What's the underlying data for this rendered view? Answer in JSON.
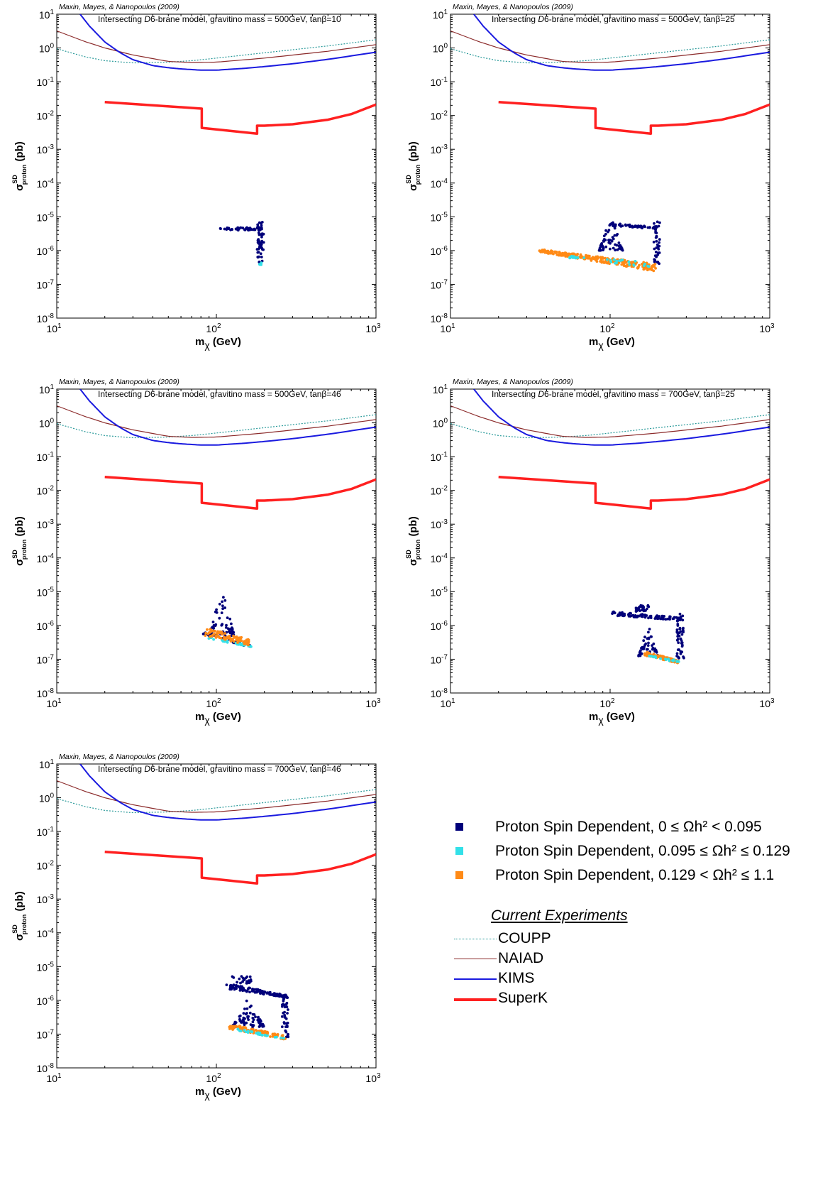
{
  "chart_data": [
    {
      "type": "scatter",
      "credit": "Maxin, Mayes, & Nanopoulos (2009)",
      "title_pre": "Intersecting ",
      "title_d": "D",
      "title_post": "6-brane model, gravitino mass = 500GeV, tanβ=10",
      "xlabel_main": "m",
      "xlabel_sub": "χ",
      "xlabel_unit": " (GeV)",
      "ylabel_main": "σ",
      "ylabel_sup": "SD",
      "ylabel_sub": "proton",
      "ylabel_unit": " (pb)",
      "xscale": "log",
      "yscale": "log",
      "xlim": [
        10,
        1000
      ],
      "ylim": [
        1e-08,
        10
      ],
      "clusters": [
        {
          "group": 0,
          "n": 45,
          "x": [
            105,
            195
          ],
          "y": [
            4e-06,
            4.8e-06
          ],
          "trend": "flat"
        },
        {
          "group": 0,
          "n": 55,
          "x": [
            180,
            198
          ],
          "y": [
            4.5e-07,
            7e-06
          ],
          "trend": "vertical"
        },
        {
          "group": 1,
          "n": 6,
          "x": [
            182,
            192
          ],
          "y": [
            3.6e-07,
            4.4e-07
          ],
          "trend": "flat"
        }
      ]
    },
    {
      "type": "scatter",
      "credit": "Maxin, Mayes, & Nanopoulos (2009)",
      "title_pre": "Intersecting ",
      "title_d": "D",
      "title_post": "6-brane model, gravitino mass = 500GeV, tanβ=25",
      "xlabel_main": "m",
      "xlabel_sub": "χ",
      "xlabel_unit": " (GeV)",
      "ylabel_main": "σ",
      "ylabel_sup": "SD",
      "ylabel_sub": "proton",
      "ylabel_unit": " (pb)",
      "xscale": "log",
      "yscale": "log",
      "xlim": [
        10,
        1000
      ],
      "ylim": [
        1e-08,
        10
      ],
      "clusters": [
        {
          "group": 2,
          "n": 260,
          "x": [
            36,
            195
          ],
          "y": [
            [
              9e-07,
              2.4e-07
            ],
            [
              1.1e-06,
              4e-07
            ]
          ],
          "trend": "band"
        },
        {
          "group": 1,
          "n": 30,
          "x": [
            55,
            200
          ],
          "y": [
            [
              6e-07,
              3e-07
            ],
            [
              7e-07,
              4.5e-07
            ]
          ],
          "trend": "band"
        },
        {
          "group": 0,
          "n": 60,
          "x": [
            85,
            120
          ],
          "y": [
            1e-06,
            1.3e-05
          ],
          "trend": "spike"
        },
        {
          "group": 0,
          "n": 60,
          "x": [
            100,
            200
          ],
          "y": [
            [
              5.5e-06,
              4.2e-06
            ],
            [
              6.5e-06,
              5e-06
            ]
          ],
          "trend": "band"
        },
        {
          "group": 0,
          "n": 40,
          "x": [
            188,
            205
          ],
          "y": [
            3.5e-07,
            8e-06
          ],
          "trend": "vertical"
        }
      ]
    },
    {
      "type": "scatter",
      "credit": "Maxin, Mayes, & Nanopoulos (2009)",
      "title_pre": "Intersecting ",
      "title_d": "D",
      "title_post": "6-brane model, gravitino mass = 500GeV, tanβ=46",
      "xlabel_main": "m",
      "xlabel_sub": "χ",
      "xlabel_unit": " (GeV)",
      "ylabel_main": "σ",
      "ylabel_sup": "SD",
      "ylabel_sub": "proton",
      "ylabel_unit": " (pb)",
      "xscale": "log",
      "yscale": "log",
      "xlim": [
        10,
        1000
      ],
      "ylim": [
        1e-08,
        10
      ],
      "clusters": [
        {
          "group": 0,
          "n": 70,
          "x": [
            90,
            130
          ],
          "y": [
            5e-07,
            1.4e-05
          ],
          "trend": "spike"
        },
        {
          "group": 0,
          "n": 40,
          "x": [
            82,
            165
          ],
          "y": [
            [
              5.5e-07,
              2.2e-07
            ],
            [
              6.5e-07,
              2.6e-07
            ]
          ],
          "trend": "band"
        },
        {
          "group": 1,
          "n": 30,
          "x": [
            85,
            165
          ],
          "y": [
            [
              4.2e-07,
              2.3e-07
            ],
            [
              5e-07,
              2.6e-07
            ]
          ],
          "trend": "band"
        },
        {
          "group": 2,
          "n": 90,
          "x": [
            85,
            160
          ],
          "y": [
            [
              5e-07,
              2.6e-07
            ],
            [
              9e-07,
              4e-07
            ]
          ],
          "trend": "band"
        }
      ]
    },
    {
      "type": "scatter",
      "credit": "Maxin, Mayes, & Nanopoulos (2009)",
      "title_pre": "Intersecting ",
      "title_d": "D",
      "title_post": "6-brane model, gravitino mass = 700GeV, tanβ=25",
      "xlabel_main": "m",
      "xlabel_sub": "χ",
      "xlabel_unit": " (GeV)",
      "ylabel_main": "σ",
      "ylabel_sup": "SD",
      "ylabel_sub": "proton",
      "ylabel_unit": " (pb)",
      "xscale": "log",
      "yscale": "log",
      "xlim": [
        10,
        1000
      ],
      "ylim": [
        1e-08,
        10
      ],
      "clusters": [
        {
          "group": 0,
          "n": 90,
          "x": [
            100,
            285
          ],
          "y": [
            [
              2e-06,
              1.4e-06
            ],
            [
              2.6e-06,
              1.7e-06
            ]
          ],
          "trend": "band"
        },
        {
          "group": 0,
          "n": 30,
          "x": [
            145,
            175
          ],
          "y": [
            2.5e-06,
            4e-06
          ],
          "trend": "flat"
        },
        {
          "group": 0,
          "n": 50,
          "x": [
            150,
            200
          ],
          "y": [
            1.2e-07,
            1.2e-06
          ],
          "trend": "spike"
        },
        {
          "group": 0,
          "n": 50,
          "x": [
            262,
            290
          ],
          "y": [
            8e-08,
            2.2e-06
          ],
          "trend": "vertical"
        },
        {
          "group": 2,
          "n": 90,
          "x": [
            165,
            270
          ],
          "y": [
            [
              1.3e-07,
              7.5e-08
            ],
            [
              1.7e-07,
              9e-08
            ]
          ],
          "trend": "band"
        },
        {
          "group": 1,
          "n": 20,
          "x": [
            175,
            275
          ],
          "y": [
            [
              1.1e-07,
              8e-08
            ],
            [
              1.3e-07,
              9e-08
            ]
          ],
          "trend": "band"
        }
      ]
    },
    {
      "type": "scatter",
      "credit": "Maxin, Mayes, & Nanopoulos (2009)",
      "title_pre": "Intersecting ",
      "title_d": "D",
      "title_post": "6-brane model, gravitino mass = 700GeV, tanβ=46",
      "xlabel_main": "m",
      "xlabel_sub": "χ",
      "xlabel_unit": " (GeV)",
      "ylabel_main": "σ",
      "ylabel_sup": "SD",
      "ylabel_sub": "proton",
      "ylabel_unit": " (pb)",
      "xscale": "log",
      "yscale": "log",
      "xlim": [
        10,
        1000
      ],
      "ylim": [
        1e-08,
        10
      ],
      "clusters": [
        {
          "group": 0,
          "n": 100,
          "x": [
            115,
            280
          ],
          "y": [
            [
              2.2e-06,
              1.2e-06
            ],
            [
              3.2e-06,
              1.4e-06
            ]
          ],
          "trend": "band"
        },
        {
          "group": 0,
          "n": 25,
          "x": [
            125,
            165
          ],
          "y": [
            3e-06,
            5.5e-06
          ],
          "trend": "flat"
        },
        {
          "group": 0,
          "n": 70,
          "x": [
            125,
            200
          ],
          "y": [
            1.6e-07,
            1.2e-06
          ],
          "trend": "spike"
        },
        {
          "group": 0,
          "n": 40,
          "x": [
            258,
            282
          ],
          "y": [
            7e-08,
            1.6e-06
          ],
          "trend": "vertical"
        },
        {
          "group": 2,
          "n": 110,
          "x": [
            120,
            270
          ],
          "y": [
            [
              1.4e-07,
              7e-08
            ],
            [
              2e-07,
              9e-08
            ]
          ],
          "trend": "band"
        },
        {
          "group": 1,
          "n": 25,
          "x": [
            120,
            270
          ],
          "y": [
            [
              1.4e-07,
              7e-08
            ],
            [
              1.6e-07,
              8e-08
            ]
          ],
          "trend": "band"
        }
      ]
    }
  ],
  "limit_curves": {
    "COUPP": {
      "color": "#2a9a9a",
      "x": [
        10,
        15,
        20,
        30,
        50,
        70,
        100,
        200,
        500,
        1000
      ],
      "y": [
        0.95,
        0.55,
        0.42,
        0.36,
        0.38,
        0.42,
        0.5,
        0.72,
        1.15,
        1.75
      ]
    },
    "NAIAD": {
      "color": "#8b2a2a",
      "x": [
        10,
        15,
        20,
        30,
        50,
        70,
        100,
        200,
        500,
        1000
      ],
      "y": [
        3.2,
        1.55,
        1.0,
        0.62,
        0.4,
        0.37,
        0.38,
        0.5,
        0.8,
        1.25
      ]
    },
    "KIMS": {
      "color": "#1a1adf",
      "x": [
        14,
        16,
        20,
        25,
        30,
        40,
        50,
        60,
        80,
        100,
        150,
        200,
        300,
        500,
        1000
      ],
      "y": [
        10,
        4.5,
        1.5,
        0.72,
        0.45,
        0.3,
        0.26,
        0.24,
        0.22,
        0.22,
        0.25,
        0.28,
        0.34,
        0.46,
        0.75
      ]
    },
    "SuperK": {
      "color": "#ff2020",
      "x": [
        20,
        81,
        81,
        180,
        180,
        200,
        300,
        500,
        700,
        1000
      ],
      "y": [
        0.025,
        0.016,
        0.0043,
        0.0029,
        0.005,
        0.005,
        0.0055,
        0.0075,
        0.011,
        0.021
      ]
    }
  },
  "group_colors": [
    "#00007a",
    "#32e0e8",
    "#ff8a16"
  ],
  "legend": {
    "points": [
      {
        "text": "Proton Spin Dependent, 0 ≤ Ωh² < 0.095",
        "color": "#00007a"
      },
      {
        "text": "Proton Spin Dependent, 0.095 ≤ Ωh² ≤ 0.129",
        "color": "#32e0e8"
      },
      {
        "text": "Proton Spin Dependent, 0.129 < Ωh² ≤ 1.1",
        "color": "#ff8a16"
      }
    ],
    "heading": "Current Experiments",
    "experiments": [
      {
        "name": "COUPP",
        "color": "#2a9a9a",
        "style": "dotted"
      },
      {
        "name": "NAIAD",
        "color": "#8b2a2a",
        "style": "thin"
      },
      {
        "name": "KIMS",
        "color": "#1a1adf",
        "style": "medium"
      },
      {
        "name": "SuperK",
        "color": "#ff2020",
        "style": "thick"
      }
    ]
  }
}
